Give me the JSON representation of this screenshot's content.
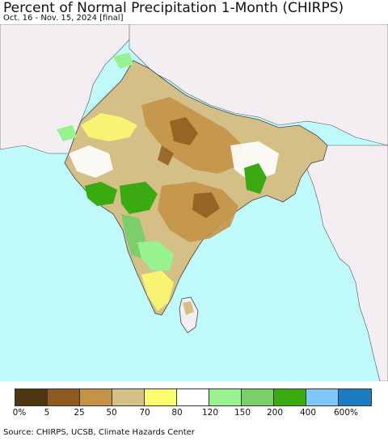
{
  "header": {
    "title": "Percent of Normal Precipitation 1-Month (CHIRPS)",
    "subtitle": "Oct. 16 - Nov. 15, 2024 [final]"
  },
  "legend": {
    "colors": [
      "#4d3510",
      "#8f5a1f",
      "#c49347",
      "#d4bf87",
      "#fdfd70",
      "#ffffff",
      "#97f28f",
      "#7bce6a",
      "#3aaa10",
      "#7fc6fb",
      "#1d7bc4"
    ],
    "labels": [
      "0%",
      "5",
      "25",
      "50",
      "70",
      "80",
      "120",
      "150",
      "200",
      "400",
      "600%"
    ]
  },
  "map": {
    "ocean_color": "#bff9fb",
    "land_color": "#f2eef2"
  },
  "footer": {
    "source": "Source: CHIRPS, UCSB, Climate Hazards Center"
  }
}
